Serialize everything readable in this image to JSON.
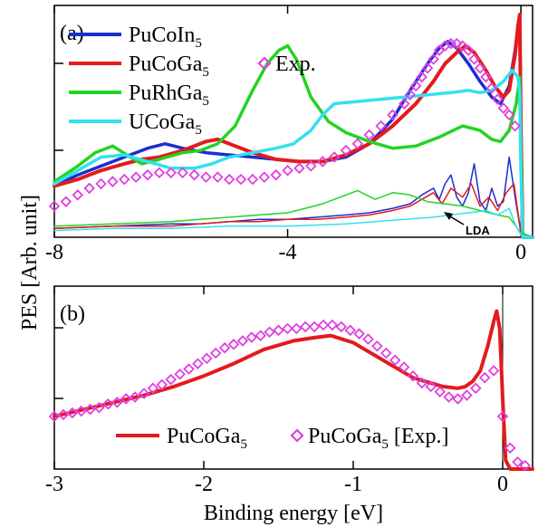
{
  "chart_data": [
    {
      "type": "line",
      "panel_label": "(a)",
      "xlim": [
        -8,
        0.2
      ],
      "ylim": [
        0,
        1
      ],
      "x_ticks": [
        -8,
        -4,
        0
      ],
      "x_tick_labels": [
        "-8",
        "-4",
        "0"
      ],
      "grid": false,
      "legend_placement": "top-left",
      "legend": [
        {
          "base": "PuCoIn",
          "subscript": "5",
          "color": "#1a2fd0",
          "marker": "line"
        },
        {
          "base": "PuCoGa",
          "subscript": "5",
          "color": "#e41a1c",
          "marker": "line"
        },
        {
          "base": "PuRhGa",
          "subscript": "5",
          "color": "#22d422",
          "marker": "line"
        },
        {
          "base": "UCoGa",
          "subscript": "5",
          "color": "#33e0f0",
          "marker": "line"
        },
        {
          "base": "Exp.",
          "subscript": "",
          "color": "#e040e0",
          "marker": "diamond"
        }
      ],
      "annotation": "LDA",
      "series": [
        {
          "key": "PuCoIn5",
          "color": "#1a2fd0",
          "width": 3.5,
          "x": [
            -8,
            -7.6,
            -7.2,
            -6.8,
            -6.4,
            -6.1,
            -5.8,
            -5.4,
            -5.0,
            -4.6,
            -4.2,
            -3.8,
            -3.4,
            -3.0,
            -2.6,
            -2.2,
            -1.9,
            -1.6,
            -1.4,
            -1.25,
            -1.1,
            -0.9,
            -0.7,
            -0.5,
            -0.35,
            -0.2,
            -0.1,
            -0.05,
            -0.02,
            0.0,
            0.03,
            0.2
          ],
          "y": [
            0.23,
            0.28,
            0.32,
            0.36,
            0.4,
            0.42,
            0.4,
            0.38,
            0.37,
            0.36,
            0.35,
            0.34,
            0.34,
            0.36,
            0.42,
            0.53,
            0.66,
            0.78,
            0.85,
            0.88,
            0.85,
            0.78,
            0.7,
            0.63,
            0.6,
            0.68,
            0.84,
            0.95,
            1.0,
            0.5,
            0.0,
            0.0
          ]
        },
        {
          "key": "PuCoGa5",
          "color": "#e41a1c",
          "width": 4,
          "x": [
            -8,
            -7.6,
            -7.2,
            -6.8,
            -6.5,
            -6.2,
            -5.8,
            -5.4,
            -5.2,
            -5.0,
            -4.6,
            -4.2,
            -3.8,
            -3.4,
            -3.0,
            -2.6,
            -2.2,
            -1.8,
            -1.5,
            -1.3,
            -1.1,
            -0.95,
            -0.8,
            -0.6,
            -0.45,
            -0.3,
            -0.2,
            -0.1,
            -0.05,
            -0.02,
            0.0,
            0.03,
            0.2
          ],
          "y": [
            0.23,
            0.26,
            0.3,
            0.33,
            0.35,
            0.36,
            0.39,
            0.43,
            0.44,
            0.42,
            0.38,
            0.35,
            0.34,
            0.34,
            0.37,
            0.42,
            0.5,
            0.6,
            0.7,
            0.78,
            0.83,
            0.86,
            0.83,
            0.75,
            0.68,
            0.63,
            0.66,
            0.82,
            0.95,
            1.0,
            0.5,
            0.0,
            0.0
          ]
        },
        {
          "key": "PuRhGa5",
          "color": "#22d422",
          "width": 3.5,
          "x": [
            -8,
            -7.6,
            -7.3,
            -7.0,
            -6.7,
            -6.5,
            -6.2,
            -5.8,
            -5.5,
            -5.2,
            -4.9,
            -4.6,
            -4.35,
            -4.15,
            -4.0,
            -3.85,
            -3.6,
            -3.3,
            -3.0,
            -2.6,
            -2.2,
            -1.8,
            -1.4,
            -1.0,
            -0.7,
            -0.5,
            -0.35,
            -0.2,
            -0.08,
            -0.02,
            0.0,
            0.03,
            0.2
          ],
          "y": [
            0.25,
            0.32,
            0.38,
            0.41,
            0.36,
            0.33,
            0.35,
            0.38,
            0.39,
            0.42,
            0.5,
            0.66,
            0.78,
            0.84,
            0.86,
            0.8,
            0.63,
            0.52,
            0.47,
            0.43,
            0.4,
            0.41,
            0.45,
            0.5,
            0.48,
            0.44,
            0.43,
            0.48,
            0.6,
            0.72,
            0.4,
            0.0,
            0.0
          ]
        },
        {
          "key": "UCoGa5",
          "color": "#33e0f0",
          "width": 3.5,
          "x": [
            -8,
            -7.6,
            -7.2,
            -6.8,
            -6.4,
            -6.0,
            -5.6,
            -5.3,
            -5.0,
            -4.6,
            -4.2,
            -3.9,
            -3.6,
            -3.4,
            -3.2,
            -2.8,
            -2.4,
            -2.0,
            -1.6,
            -1.2,
            -0.9,
            -0.7,
            -0.5,
            -0.3,
            -0.15,
            -0.05,
            -0.02,
            0.0,
            0.03,
            0.2
          ],
          "y": [
            0.24,
            0.3,
            0.36,
            0.37,
            0.34,
            0.31,
            0.31,
            0.33,
            0.36,
            0.38,
            0.4,
            0.42,
            0.48,
            0.55,
            0.6,
            0.61,
            0.62,
            0.63,
            0.64,
            0.65,
            0.66,
            0.65,
            0.66,
            0.7,
            0.75,
            0.72,
            0.65,
            0.3,
            0.0,
            0.0
          ]
        },
        {
          "key": "LDA_PuCoIn5",
          "color": "#1a2fd0",
          "width": 1.5,
          "x": [
            -8,
            -7.0,
            -6.0,
            -5.5,
            -5.0,
            -4.5,
            -4.0,
            -3.5,
            -3.0,
            -2.6,
            -2.2,
            -1.9,
            -1.7,
            -1.5,
            -1.4,
            -1.3,
            -1.2,
            -1.1,
            -1.0,
            -0.9,
            -0.8,
            -0.7,
            -0.6,
            -0.5,
            -0.4,
            -0.3,
            -0.2,
            -0.1,
            0.0,
            0.2
          ],
          "y": [
            0.04,
            0.05,
            0.06,
            0.06,
            0.07,
            0.08,
            0.08,
            0.09,
            0.1,
            0.11,
            0.13,
            0.15,
            0.19,
            0.22,
            0.17,
            0.24,
            0.28,
            0.18,
            0.14,
            0.2,
            0.33,
            0.16,
            0.12,
            0.22,
            0.14,
            0.16,
            0.36,
            0.18,
            0.02,
            0.0
          ]
        },
        {
          "key": "LDA_PuCoGa5",
          "color": "#e41a1c",
          "width": 1.5,
          "x": [
            -8,
            -7.0,
            -6.0,
            -5.5,
            -5.0,
            -4.5,
            -4.0,
            -3.5,
            -3.0,
            -2.6,
            -2.2,
            -1.9,
            -1.7,
            -1.5,
            -1.35,
            -1.2,
            -1.0,
            -0.85,
            -0.7,
            -0.55,
            -0.4,
            -0.25,
            -0.12,
            0.0,
            0.2
          ],
          "y": [
            0.04,
            0.05,
            0.05,
            0.06,
            0.07,
            0.07,
            0.08,
            0.08,
            0.09,
            0.1,
            0.12,
            0.14,
            0.17,
            0.2,
            0.15,
            0.22,
            0.18,
            0.24,
            0.14,
            0.18,
            0.12,
            0.2,
            0.24,
            0.02,
            0.0
          ]
        },
        {
          "key": "LDA_PuRhGa5",
          "color": "#22d422",
          "width": 1.5,
          "x": [
            -8,
            -7.0,
            -6.0,
            -5.5,
            -5.0,
            -4.5,
            -4.0,
            -3.7,
            -3.4,
            -3.1,
            -2.8,
            -2.5,
            -2.2,
            -1.9,
            -1.6,
            -1.3,
            -1.0,
            -0.7,
            -0.4,
            -0.2,
            0.0,
            0.2
          ],
          "y": [
            0.05,
            0.06,
            0.07,
            0.08,
            0.09,
            0.1,
            0.11,
            0.13,
            0.15,
            0.18,
            0.21,
            0.17,
            0.2,
            0.19,
            0.16,
            0.15,
            0.14,
            0.12,
            0.1,
            0.09,
            0.02,
            0.0
          ]
        },
        {
          "key": "LDA_UCoGa5",
          "color": "#33e0f0",
          "width": 1.5,
          "x": [
            -8,
            -7.0,
            -6.0,
            -5.0,
            -4.0,
            -3.0,
            -2.5,
            -2.0,
            -1.5,
            -1.2,
            -0.9,
            -0.6,
            -0.4,
            -0.2,
            -0.1,
            0.0,
            0.2
          ],
          "y": [
            0.03,
            0.04,
            0.04,
            0.05,
            0.05,
            0.06,
            0.07,
            0.08,
            0.09,
            0.1,
            0.11,
            0.12,
            0.1,
            0.13,
            0.06,
            0.01,
            0.0
          ]
        },
        {
          "key": "Exp",
          "color": "#e040e0",
          "marker": "diamond",
          "x": [
            -8.0,
            -7.8,
            -7.6,
            -7.4,
            -7.2,
            -7.0,
            -6.8,
            -6.6,
            -6.4,
            -6.2,
            -6.0,
            -5.8,
            -5.6,
            -5.4,
            -5.2,
            -5.0,
            -4.8,
            -4.6,
            -4.4,
            -4.2,
            -4.0,
            -3.8,
            -3.6,
            -3.4,
            -3.2,
            -3.0,
            -2.8,
            -2.6,
            -2.4,
            -2.2,
            -2.0,
            -1.9,
            -1.8,
            -1.7,
            -1.6,
            -1.5,
            -1.4,
            -1.3,
            -1.2,
            -1.1,
            -1.0,
            -0.9,
            -0.8,
            -0.7,
            -0.6,
            -0.5,
            -0.4,
            -0.3,
            -0.2,
            -0.1
          ],
          "y": [
            0.14,
            0.16,
            0.19,
            0.22,
            0.24,
            0.25,
            0.26,
            0.27,
            0.28,
            0.29,
            0.29,
            0.29,
            0.28,
            0.27,
            0.27,
            0.26,
            0.26,
            0.26,
            0.27,
            0.28,
            0.3,
            0.31,
            0.32,
            0.34,
            0.36,
            0.39,
            0.42,
            0.46,
            0.5,
            0.55,
            0.6,
            0.64,
            0.68,
            0.72,
            0.76,
            0.8,
            0.84,
            0.86,
            0.87,
            0.87,
            0.86,
            0.84,
            0.8,
            0.76,
            0.72,
            0.67,
            0.62,
            0.58,
            0.55,
            0.5
          ]
        }
      ]
    },
    {
      "type": "line",
      "panel_label": "(b)",
      "xlabel": "Binding energy [eV]",
      "ylabel": "PES [Arb. unit]",
      "xlim": [
        -3,
        0.2
      ],
      "ylim": [
        0,
        1
      ],
      "x_ticks": [
        -3,
        -2,
        -1,
        0
      ],
      "x_tick_labels": [
        "-3",
        "-2",
        "-1",
        "0"
      ],
      "grid": false,
      "legend_placement": "bottom-center",
      "legend": [
        {
          "base": "PuCoGa",
          "subscript": "5",
          "suffix": "",
          "color": "#e41a1c",
          "marker": "line"
        },
        {
          "base": "PuCoGa",
          "subscript": "5",
          "suffix": " [Exp.]",
          "color": "#e040e0",
          "marker": "diamond"
        }
      ],
      "series": [
        {
          "key": "PuCoGa5",
          "color": "#e41a1c",
          "width": 4,
          "x": [
            -3.0,
            -2.8,
            -2.6,
            -2.4,
            -2.2,
            -2.0,
            -1.8,
            -1.6,
            -1.4,
            -1.25,
            -1.15,
            -1.0,
            -0.8,
            -0.6,
            -0.4,
            -0.3,
            -0.25,
            -0.2,
            -0.15,
            -0.1,
            -0.06,
            -0.04,
            -0.02,
            0.0,
            0.02,
            0.05,
            0.2
          ],
          "y": [
            0.3,
            0.34,
            0.38,
            0.42,
            0.47,
            0.53,
            0.6,
            0.68,
            0.73,
            0.75,
            0.76,
            0.72,
            0.62,
            0.52,
            0.47,
            0.46,
            0.47,
            0.5,
            0.56,
            0.7,
            0.84,
            0.9,
            0.8,
            0.4,
            0.05,
            0.0,
            0.0
          ]
        },
        {
          "key": "PuCoGa5_Exp",
          "color": "#e040e0",
          "marker": "diamond",
          "x": [
            -3.0,
            -2.94,
            -2.88,
            -2.82,
            -2.76,
            -2.7,
            -2.64,
            -2.58,
            -2.52,
            -2.46,
            -2.4,
            -2.34,
            -2.28,
            -2.22,
            -2.16,
            -2.1,
            -2.04,
            -1.98,
            -1.92,
            -1.86,
            -1.8,
            -1.74,
            -1.68,
            -1.62,
            -1.56,
            -1.5,
            -1.44,
            -1.38,
            -1.32,
            -1.26,
            -1.2,
            -1.14,
            -1.08,
            -1.02,
            -0.96,
            -0.9,
            -0.84,
            -0.78,
            -0.72,
            -0.66,
            -0.6,
            -0.54,
            -0.48,
            -0.42,
            -0.36,
            -0.3,
            -0.24,
            -0.18,
            -0.12,
            -0.06,
            0.0,
            0.05,
            0.1,
            0.15
          ],
          "y": [
            0.3,
            0.31,
            0.32,
            0.33,
            0.34,
            0.35,
            0.37,
            0.38,
            0.4,
            0.41,
            0.43,
            0.46,
            0.48,
            0.51,
            0.54,
            0.57,
            0.6,
            0.63,
            0.66,
            0.69,
            0.71,
            0.73,
            0.75,
            0.76,
            0.78,
            0.79,
            0.8,
            0.8,
            0.81,
            0.81,
            0.82,
            0.82,
            0.81,
            0.79,
            0.77,
            0.74,
            0.7,
            0.66,
            0.62,
            0.58,
            0.53,
            0.49,
            0.47,
            0.44,
            0.41,
            0.4,
            0.42,
            0.46,
            0.52,
            0.56,
            0.3,
            0.12,
            0.04,
            0.02
          ]
        }
      ]
    }
  ]
}
